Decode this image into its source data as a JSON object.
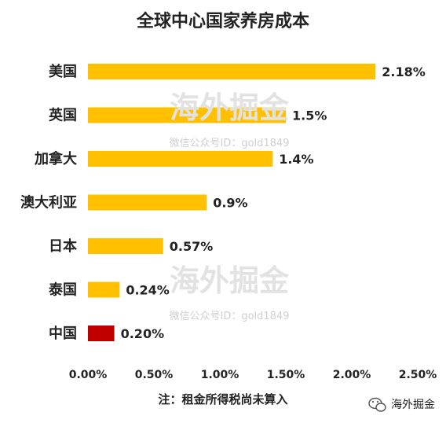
{
  "chart_data": {
    "type": "bar",
    "orientation": "horizontal",
    "title": "全球中心国家养房成本",
    "categories": [
      "美国",
      "英国",
      "加拿大",
      "澳大利亚",
      "日本",
      "泰国",
      "中国"
    ],
    "values": [
      2.18,
      1.5,
      1.4,
      0.9,
      0.57,
      0.24,
      0.2
    ],
    "value_labels": [
      "2.18%",
      "1.5%",
      "1.4%",
      "0.9%",
      "0.57%",
      "0.24%",
      "0.20%"
    ],
    "xlim": [
      0,
      2.5
    ],
    "ticks": [
      "0.00%",
      "0.50%",
      "1.00%",
      "1.50%",
      "2.00%",
      "2.50%"
    ],
    "grid": false,
    "colors": {
      "default": "#ffc000",
      "highlight": "#c00000",
      "highlight_category": "中国"
    },
    "note": "注：租金所得税尚未算入"
  },
  "watermarks": [
    {
      "main": "海外掘金",
      "sub": "微信公众号ID：gold1849"
    },
    {
      "main": "海外掘金",
      "sub": "微信公众号ID：gold1849"
    }
  ],
  "brand": {
    "icon": "wechat-icon",
    "label": "海外掘金"
  }
}
